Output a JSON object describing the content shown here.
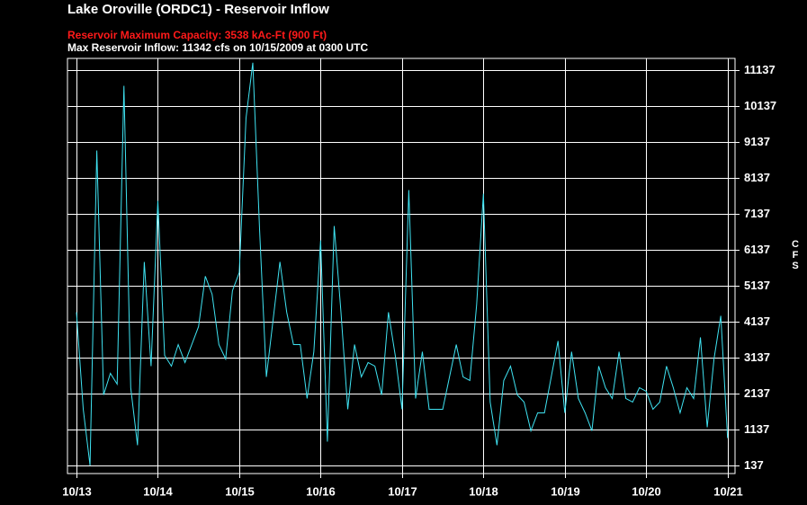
{
  "chart_data": {
    "type": "line",
    "title": "Lake Oroville (ORDC1) - Reservoir Inflow",
    "subtitle": "Reservoir Maximum Capacity: 3538 kAc-Ft (900 Ft)",
    "annotation": "Max Reservoir Inflow: 11342 cfs on 10/15/2009 at 0300 UTC",
    "y_label": "CFS",
    "grid": true,
    "x": [
      0,
      2,
      4,
      6,
      8,
      10,
      12,
      14,
      16,
      18,
      20,
      22,
      24,
      26,
      28,
      30,
      32,
      34,
      36,
      38,
      40,
      42,
      44,
      46,
      48,
      50,
      52,
      54,
      56,
      58,
      60,
      62,
      64,
      66,
      68,
      70,
      72,
      74,
      76,
      78,
      80,
      82,
      84,
      86,
      88,
      90,
      92,
      94,
      96,
      98,
      100,
      102,
      104,
      106,
      108,
      110,
      112,
      114,
      116,
      118,
      120,
      122,
      124,
      126,
      128,
      130,
      132,
      134,
      136,
      138,
      140,
      142,
      144,
      146,
      148,
      150,
      152,
      154,
      156,
      158,
      160,
      162,
      164,
      166,
      168,
      170,
      172,
      174,
      176,
      178,
      180,
      182,
      184,
      186,
      188,
      190,
      192
    ],
    "xlim": [
      -2.65,
      194.2
    ],
    "xticks": [
      {
        "value": 0,
        "label": "10/13"
      },
      {
        "value": 24,
        "label": "10/14"
      },
      {
        "value": 48,
        "label": "10/15"
      },
      {
        "value": 72,
        "label": "10/16"
      },
      {
        "value": 96,
        "label": "10/17"
      },
      {
        "value": 120,
        "label": "10/18"
      },
      {
        "value": 144,
        "label": "10/19"
      },
      {
        "value": 168,
        "label": "10/20"
      },
      {
        "value": 192,
        "label": "10/21"
      }
    ],
    "ylim": [
      -88,
      11462
    ],
    "yticks": [
      137,
      1137,
      2137,
      3137,
      4137,
      5137,
      6137,
      7137,
      8137,
      9137,
      10137,
      11137
    ],
    "series": [
      {
        "color": "#3fe3f2",
        "values": [
          4400,
          1700,
          137,
          8900,
          2100,
          2700,
          2400,
          10700,
          2300,
          700,
          5800,
          2900,
          7500,
          3200,
          2900,
          3500,
          3000,
          3500,
          4000,
          5400,
          4900,
          3500,
          3100,
          5000,
          5500,
          9800,
          11342,
          6700,
          2600,
          4200,
          5800,
          4400,
          3500,
          3500,
          2000,
          3300,
          6400,
          800,
          6800,
          4400,
          1700,
          3500,
          2600,
          3000,
          2900,
          2100,
          4400,
          3200,
          1700,
          7800,
          2000,
          3300,
          1700,
          1700,
          1700,
          2600,
          3500,
          2600,
          2500,
          4600,
          7700,
          1900,
          700,
          2500,
          2900,
          2100,
          1900,
          1100,
          1600,
          1600,
          2600,
          3600,
          1600,
          3300,
          2000,
          1600,
          1100,
          2900,
          2300,
          2000,
          3300,
          2000,
          1900,
          2300,
          2200,
          1700,
          1900,
          2900,
          2300,
          1600,
          2300,
          2000,
          3700,
          1200,
          3100,
          4300,
          900
        ]
      }
    ]
  }
}
